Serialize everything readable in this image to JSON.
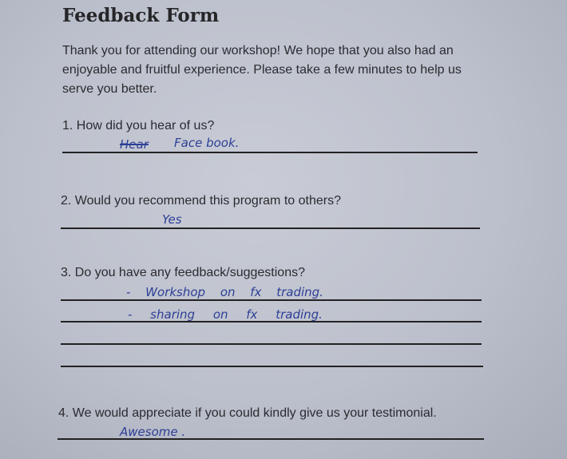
{
  "title": "Feedback Form",
  "intro": "Thank you for attending our workshop! We hope that you also had an enjoyable and fruitful experience. Please take a few minutes to help us serve you better.",
  "questions": [
    {
      "label": "1. How did you hear of us?",
      "answers": [
        "Hear",
        "Face book."
      ]
    },
    {
      "label": "2. Would you recommend this program to others?",
      "answers": [
        "Yes"
      ]
    },
    {
      "label": "3. Do you have any feedback/suggestions?",
      "answers": [
        "- Workshop  on  fx  trading.",
        "- sharing  on  fx  trading."
      ]
    },
    {
      "label": "4. We would appreciate if you could kindly give us your testimonial.",
      "answers": [
        "Awesome ."
      ]
    }
  ],
  "colors": {
    "ink": "#2d3f95",
    "paper": "#c4c7d1"
  }
}
